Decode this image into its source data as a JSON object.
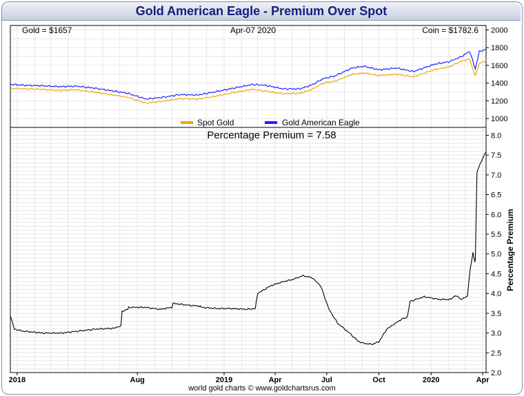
{
  "title": "Gold American Eagle - Premium Over Spot",
  "footer": "world gold charts © www.goldchartsrus.com",
  "header_labels": {
    "gold": "Gold = $1657",
    "date": "Apr-07  2020",
    "coin": "Coin = $1782.6"
  },
  "premium_label": "Percentage Premium = 7.58",
  "colors": {
    "spot": "#f0a800",
    "eagle": "#1a22ff",
    "premium": "#000000",
    "grid": "#e6e6e6",
    "title": "#1a1a80"
  },
  "chart_data": [
    {
      "type": "line",
      "panel": "top",
      "ylim": [
        900,
        2050
      ],
      "y_ticks": [
        "1000",
        "1200",
        "1400",
        "1600",
        "1800",
        "2000"
      ],
      "x_range": [
        "2017-12-20",
        "2020-04-07"
      ],
      "legend": {
        "position": "bottom-center",
        "entries": [
          "Spot Gold",
          "Gold American Eagle"
        ]
      },
      "series": [
        {
          "name": "Spot Gold",
          "x": [
            "2017-12-20",
            "2018-01-15",
            "2018-02-15",
            "2018-03-15",
            "2018-04-15",
            "2018-05-15",
            "2018-06-15",
            "2018-07-15",
            "2018-08-16",
            "2018-09-15",
            "2018-10-15",
            "2018-11-15",
            "2018-12-15",
            "2019-01-15",
            "2019-02-20",
            "2019-03-15",
            "2019-04-15",
            "2019-05-15",
            "2019-06-05",
            "2019-06-25",
            "2019-07-15",
            "2019-08-15",
            "2019-09-05",
            "2019-10-01",
            "2019-11-01",
            "2019-12-01",
            "2020-01-08",
            "2020-02-01",
            "2020-02-24",
            "2020-03-09",
            "2020-03-19",
            "2020-03-26",
            "2020-04-07"
          ],
          "values": [
            1340,
            1335,
            1330,
            1318,
            1325,
            1300,
            1270,
            1240,
            1175,
            1195,
            1225,
            1220,
            1250,
            1290,
            1330,
            1310,
            1280,
            1285,
            1330,
            1400,
            1420,
            1500,
            1515,
            1485,
            1500,
            1470,
            1555,
            1580,
            1650,
            1670,
            1480,
            1620,
            1657
          ]
        },
        {
          "name": "Gold American Eagle",
          "x": [
            "2017-12-20",
            "2018-01-15",
            "2018-02-15",
            "2018-03-15",
            "2018-04-15",
            "2018-05-15",
            "2018-06-15",
            "2018-07-15",
            "2018-08-16",
            "2018-09-15",
            "2018-10-15",
            "2018-11-15",
            "2018-12-15",
            "2019-01-15",
            "2019-02-20",
            "2019-03-15",
            "2019-04-15",
            "2019-05-15",
            "2019-06-05",
            "2019-06-25",
            "2019-07-15",
            "2019-08-15",
            "2019-09-05",
            "2019-10-01",
            "2019-11-01",
            "2019-12-01",
            "2020-01-08",
            "2020-02-01",
            "2020-02-24",
            "2020-03-09",
            "2020-03-19",
            "2020-03-26",
            "2020-04-07"
          ],
          "values": [
            1385,
            1375,
            1370,
            1360,
            1365,
            1345,
            1315,
            1285,
            1220,
            1240,
            1270,
            1265,
            1300,
            1340,
            1385,
            1375,
            1335,
            1335,
            1380,
            1450,
            1480,
            1570,
            1590,
            1550,
            1570,
            1530,
            1615,
            1640,
            1700,
            1760,
            1560,
            1755,
            1782.6
          ]
        }
      ]
    },
    {
      "type": "line",
      "panel": "bottom",
      "ylabel": "Percentage Premium",
      "ylim": [
        2.0,
        8.2
      ],
      "y_ticks": [
        "2.0",
        "2.5",
        "3.0",
        "3.5",
        "4.0",
        "4.5",
        "5.0",
        "5.5",
        "6.0",
        "6.5",
        "7.0",
        "7.5",
        "8.0"
      ],
      "x_ticks": [
        {
          "label": "2018",
          "date": "2018-01-01"
        },
        {
          "label": "Aug",
          "date": "2018-08-01"
        },
        {
          "label": "2019",
          "date": "2019-01-01"
        },
        {
          "label": "Apr",
          "date": "2019-04-01"
        },
        {
          "label": "Jul",
          "date": "2019-07-01"
        },
        {
          "label": "Oct",
          "date": "2019-10-01"
        },
        {
          "label": "2020",
          "date": "2020-01-01"
        },
        {
          "label": "Apr",
          "date": "2020-04-01"
        }
      ],
      "series": [
        {
          "name": "Percentage Premium",
          "x": [
            "2017-12-20",
            "2017-12-27",
            "2018-01-10",
            "2018-02-15",
            "2018-03-20",
            "2018-04-20",
            "2018-05-20",
            "2018-06-20",
            "2018-07-03",
            "2018-07-05",
            "2018-07-15",
            "2018-07-17",
            "2018-08-15",
            "2018-09-10",
            "2018-10-01",
            "2018-10-03",
            "2018-11-01",
            "2018-11-20",
            "2018-11-22",
            "2018-12-20",
            "2019-01-15",
            "2019-02-10",
            "2019-02-25",
            "2019-03-01",
            "2019-03-25",
            "2019-04-15",
            "2019-05-01",
            "2019-05-20",
            "2019-06-05",
            "2019-06-20",
            "2019-07-05",
            "2019-07-20",
            "2019-08-10",
            "2019-08-25",
            "2019-09-01",
            "2019-09-15",
            "2019-09-20",
            "2019-10-01",
            "2019-10-15",
            "2019-10-25",
            "2019-11-10",
            "2019-11-20",
            "2019-11-25",
            "2019-12-20",
            "2020-01-15",
            "2020-02-05",
            "2020-02-12",
            "2020-02-25",
            "2020-03-02",
            "2020-03-05",
            "2020-03-10",
            "2020-03-15",
            "2020-03-18",
            "2020-03-19",
            "2020-03-22",
            "2020-03-28",
            "2020-04-07"
          ],
          "values": [
            3.45,
            3.1,
            3.05,
            3.0,
            3.0,
            3.05,
            3.1,
            3.12,
            3.18,
            3.55,
            3.6,
            3.65,
            3.65,
            3.6,
            3.65,
            3.75,
            3.7,
            3.68,
            3.65,
            3.62,
            3.62,
            3.6,
            3.62,
            4.0,
            4.2,
            4.3,
            4.35,
            4.45,
            4.4,
            4.2,
            3.6,
            3.25,
            3.0,
            2.8,
            2.75,
            2.72,
            2.72,
            2.78,
            3.1,
            3.2,
            3.35,
            3.4,
            3.8,
            3.92,
            3.85,
            3.85,
            3.95,
            3.85,
            3.9,
            3.95,
            4.6,
            5.05,
            4.8,
            4.85,
            7.05,
            7.3,
            7.58
          ]
        }
      ]
    }
  ]
}
